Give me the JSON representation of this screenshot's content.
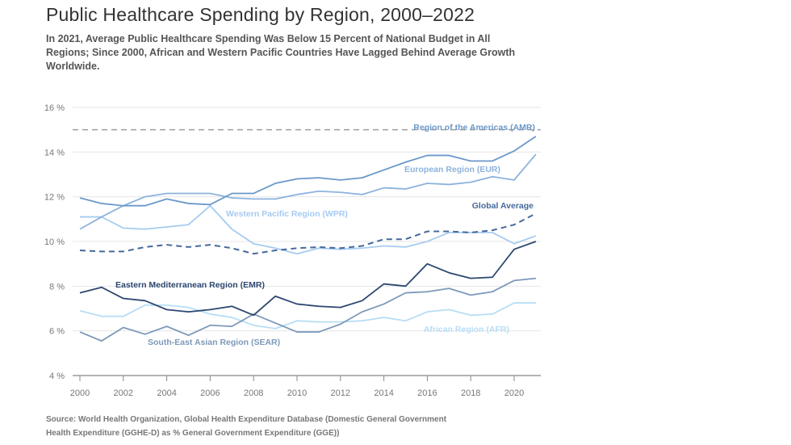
{
  "title": "Public Healthcare Spending by Region, 2000–2022",
  "subtitle": "In 2021, Average Public Healthcare Spending Was Below 15 Percent of National Budget in All Regions; Since 2000, African and Western Pacific Countries Have Lagged Behind Average Growth Worldwide.",
  "source": "Source: World Health Organization, Global Health Expenditure Database (Domestic General Government Health Expenditure (GGHE-D) as % General Government Expenditure (GGE))",
  "chart_data": {
    "type": "line",
    "x": [
      2000,
      2001,
      2002,
      2003,
      2004,
      2005,
      2006,
      2007,
      2008,
      2009,
      2010,
      2011,
      2012,
      2013,
      2014,
      2015,
      2016,
      2017,
      2018,
      2019,
      2020,
      2021
    ],
    "xticks": [
      "2000",
      "2002",
      "2004",
      "2006",
      "2008",
      "2010",
      "2012",
      "2014",
      "2016",
      "2018",
      "2020"
    ],
    "yticks": [
      "4 %",
      "6 %",
      "8 %",
      "10 %",
      "12 %",
      "14 %",
      "16 %"
    ],
    "ylim": [
      4,
      16
    ],
    "grid": true,
    "reference_line": {
      "value": 15,
      "color": "#9e9e9e",
      "style": "dashed"
    },
    "series": [
      {
        "name": "Region of the Americas (AMR)",
        "color": "#6b98c9",
        "dashed": false,
        "values": [
          11.95,
          11.7,
          11.6,
          11.6,
          11.9,
          11.7,
          11.65,
          12.15,
          12.15,
          12.6,
          12.8,
          12.85,
          12.75,
          12.85,
          13.2,
          13.55,
          13.85,
          13.85,
          13.6,
          13.6,
          14.05,
          14.7
        ]
      },
      {
        "name": "European Region (EUR)",
        "color": "#8db2dd",
        "dashed": false,
        "values": [
          10.55,
          11.1,
          11.6,
          12.0,
          12.15,
          12.15,
          12.15,
          11.95,
          11.9,
          11.9,
          12.1,
          12.25,
          12.2,
          12.1,
          12.4,
          12.35,
          12.6,
          12.55,
          12.65,
          12.9,
          12.75,
          13.9
        ]
      },
      {
        "name": "Western Pacific Region (WPR)",
        "color": "#a6cbf1",
        "dashed": false,
        "values": [
          11.1,
          11.1,
          10.6,
          10.55,
          10.65,
          10.75,
          11.6,
          10.55,
          9.9,
          9.7,
          9.45,
          9.7,
          9.65,
          9.7,
          9.8,
          9.75,
          10.0,
          10.4,
          10.4,
          10.4,
          9.9,
          10.25
        ]
      },
      {
        "name": "Global Average",
        "color": "#46699b",
        "dashed": true,
        "values": [
          9.6,
          9.55,
          9.55,
          9.75,
          9.85,
          9.75,
          9.85,
          9.7,
          9.45,
          9.6,
          9.7,
          9.75,
          9.7,
          9.8,
          10.1,
          10.1,
          10.45,
          10.45,
          10.4,
          10.5,
          10.75,
          11.25
        ]
      },
      {
        "name": "Eastern Mediterranean Region (EMR)",
        "color": "#2c4770",
        "dashed": false,
        "values": [
          7.7,
          7.95,
          7.45,
          7.35,
          6.95,
          6.85,
          6.95,
          7.1,
          6.7,
          7.55,
          7.2,
          7.1,
          7.05,
          7.35,
          8.1,
          8.0,
          9.0,
          8.6,
          8.35,
          8.4,
          9.65,
          10.0
        ]
      },
      {
        "name": "South-East Asian Region (SEAR)",
        "color": "#7d99b9",
        "dashed": false,
        "values": [
          5.95,
          5.55,
          6.15,
          5.85,
          6.2,
          5.8,
          6.25,
          6.2,
          6.75,
          6.35,
          5.95,
          5.95,
          6.3,
          6.85,
          7.2,
          7.7,
          7.75,
          7.9,
          7.6,
          7.75,
          8.25,
          8.35
        ]
      },
      {
        "name": "African Region (AFR)",
        "color": "#b7def6",
        "dashed": false,
        "values": [
          6.9,
          6.65,
          6.65,
          7.15,
          7.15,
          7.05,
          6.75,
          6.6,
          6.25,
          6.1,
          6.45,
          6.4,
          6.4,
          6.45,
          6.6,
          6.45,
          6.85,
          6.95,
          6.7,
          6.75,
          7.25,
          7.25
        ]
      }
    ]
  }
}
